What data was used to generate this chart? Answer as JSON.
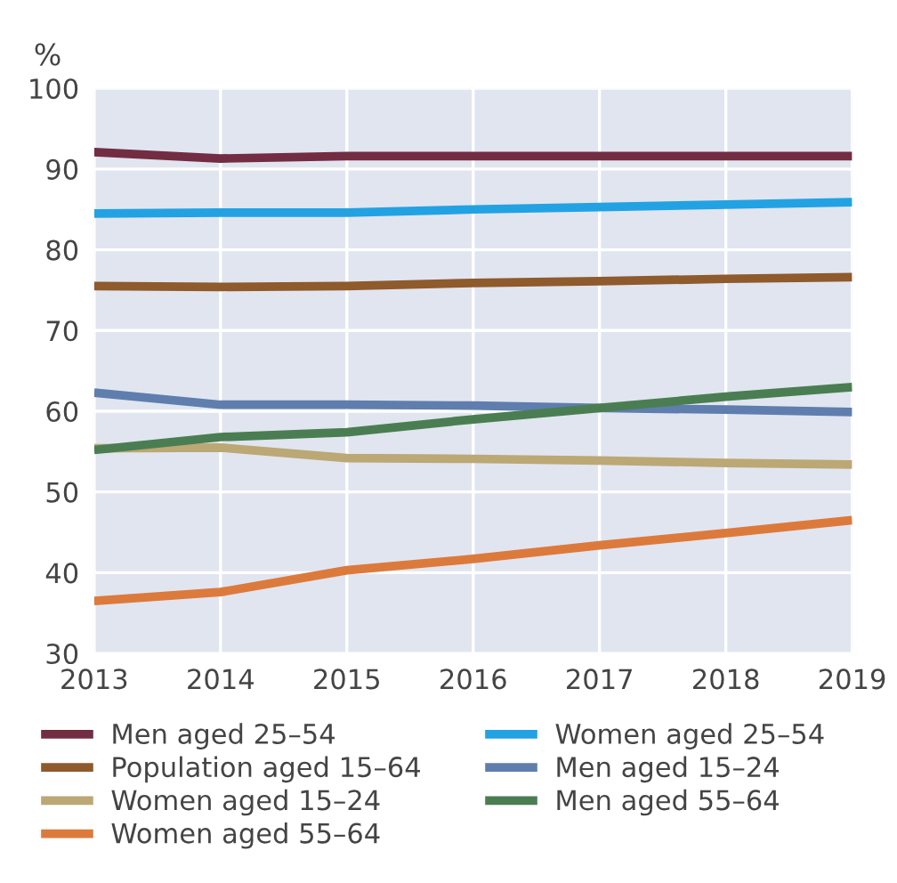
{
  "chart_data": {
    "type": "line",
    "ylabel": "%",
    "x": [
      2013,
      2014,
      2015,
      2016,
      2017,
      2018,
      2019
    ],
    "xlim": [
      2013,
      2019
    ],
    "xticks": [
      2013,
      2014,
      2015,
      2016,
      2017,
      2018,
      2019
    ],
    "ylim": [
      30,
      100
    ],
    "yticks": [
      30,
      40,
      50,
      60,
      70,
      80,
      90,
      100
    ],
    "grid": true,
    "legend": "bottom",
    "marker": "none",
    "line_style": "solid",
    "series": [
      {
        "name": "Men aged 25–54",
        "color": "#722d42",
        "values": [
          92.1,
          91.3,
          91.6,
          91.6,
          91.6,
          91.6,
          91.6
        ]
      },
      {
        "name": "Population aged 15–64",
        "color": "#8f5a2c",
        "values": [
          75.5,
          75.4,
          75.5,
          75.9,
          76.1,
          76.4,
          76.6
        ]
      },
      {
        "name": "Women aged 15–24",
        "color": "#bba874",
        "values": [
          55.4,
          55.5,
          54.2,
          54.1,
          53.9,
          53.6,
          53.4
        ]
      },
      {
        "name": "Women aged 55–64",
        "color": "#dc7a3c",
        "values": [
          36.5,
          37.6,
          40.3,
          41.7,
          43.4,
          44.9,
          46.5
        ]
      },
      {
        "name": "Women aged 25–54",
        "color": "#22a2e2",
        "values": [
          84.5,
          84.6,
          84.6,
          85.0,
          85.3,
          85.6,
          85.9
        ]
      },
      {
        "name": "Men aged 15–24",
        "color": "#5f7eae",
        "values": [
          62.3,
          60.8,
          60.8,
          60.7,
          60.4,
          60.2,
          59.9
        ]
      },
      {
        "name": "Men aged 55–64",
        "color": "#4a7e52",
        "values": [
          55.2,
          56.8,
          57.4,
          59.0,
          60.4,
          61.8,
          63.0
        ]
      }
    ]
  }
}
